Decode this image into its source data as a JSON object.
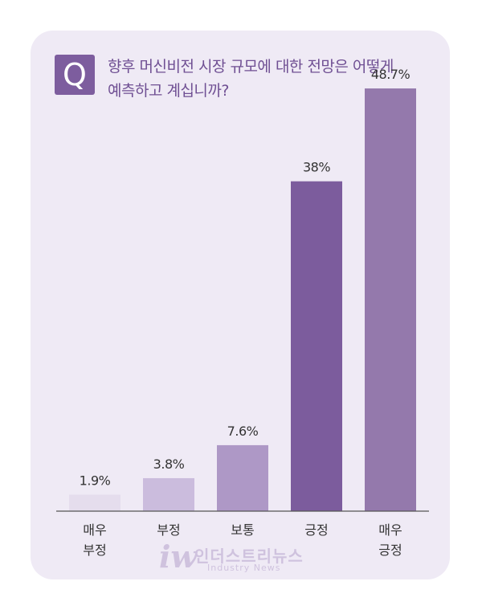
{
  "question": {
    "badge": "Q",
    "line1": "향후 머신비전 시장 규모에 대한 전망은 어떻게",
    "line2": "예측하고 계십니까?"
  },
  "chart_data": {
    "type": "bar",
    "categories": [
      [
        "매우",
        "부정"
      ],
      [
        "부정"
      ],
      [
        "보통"
      ],
      [
        "긍정"
      ],
      [
        "매우",
        "긍정"
      ]
    ],
    "values": [
      1.9,
      3.8,
      7.6,
      38,
      48.7
    ],
    "value_labels": [
      "1.9%",
      "3.8%",
      "7.6%",
      "38%",
      "48.7%"
    ],
    "colors": [
      "#e5dded",
      "#cbbcdd",
      "#ae98c6",
      "#7c5c9d",
      "#9479ac"
    ],
    "ylim": [
      0,
      50
    ],
    "grid": false,
    "legend": "none"
  },
  "watermark": {
    "logo": "iw",
    "name": "인더스트리뉴스",
    "sub": "Industry News"
  },
  "colors": {
    "card_background": "#efeaf5",
    "accent": "#7d5d9e",
    "question_text": "#6f4f93",
    "baseline": "#555555",
    "label_text": "#333333"
  }
}
